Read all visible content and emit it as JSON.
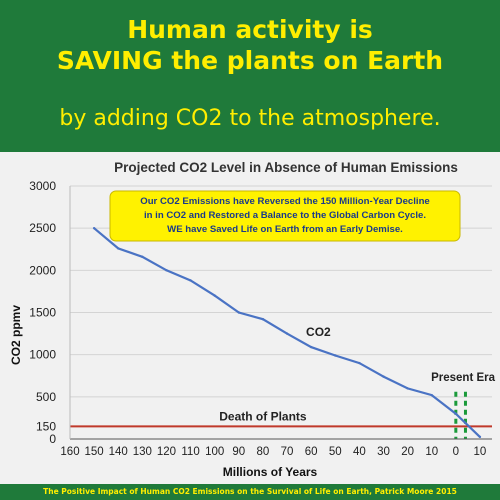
{
  "header": {
    "headline_line1": "Human activity is",
    "headline_line2": "SAVING the plants on Earth",
    "subline": "by adding CO2 to the atmosphere."
  },
  "footer": {
    "credit": "The Positive Impact of Human CO2 Emissions on the Survival of Life on Earth, Patrick Moore 2015"
  },
  "colors": {
    "background_green": "#1f7a3a",
    "headline_yellow": "#ffee00",
    "co2_line": "#4a73c4",
    "death_line": "#c0392b",
    "present_marker": "#1a9a3a",
    "callout_fill": "#fff200"
  },
  "chart_data": {
    "type": "line",
    "title": "Projected CO2 Level in Absence of Human Emissions",
    "xlabel": "Millions of Years",
    "ylabel": "CO2 ppmv",
    "x_reversed": true,
    "xlim": [
      160,
      -15
    ],
    "ylim": [
      0,
      3000
    ],
    "x_ticks": [
      160,
      150,
      140,
      130,
      120,
      110,
      100,
      90,
      80,
      70,
      60,
      50,
      40,
      30,
      20,
      10,
      0,
      -10
    ],
    "x_tick_labels": [
      "160",
      "150",
      "140",
      "130",
      "120",
      "110",
      "100",
      "90",
      "80",
      "70",
      "60",
      "50",
      "40",
      "30",
      "20",
      "10",
      "0",
      "10"
    ],
    "y_ticks": [
      0,
      150,
      500,
      1000,
      1500,
      2000,
      2500,
      3000
    ],
    "y_tick_labels": [
      "0",
      "150",
      "500",
      "1000",
      "1500",
      "2000",
      "2500",
      "3000"
    ],
    "grid": "horizontal",
    "series": [
      {
        "name": "CO2",
        "x": [
          150,
          140,
          130,
          120,
          110,
          100,
          90,
          80,
          70,
          60,
          50,
          40,
          30,
          20,
          10,
          0,
          -10
        ],
        "y": [
          2500,
          2260,
          2160,
          2000,
          1880,
          1700,
          1500,
          1420,
          1250,
          1090,
          990,
          900,
          740,
          600,
          520,
          300,
          25
        ]
      }
    ],
    "threshold": {
      "label": "Death of Plants",
      "y": 150
    },
    "present_marker": {
      "label": "Present Era",
      "x": [
        0,
        -4
      ]
    },
    "callout": {
      "line1": "Our CO2 Emissions have Reversed the 150 Million-Year Decline",
      "line2": "in in CO2 and Restored a Balance to the Global Carbon Cycle.",
      "line3": "WE have Saved Life on Earth from an Early Demise."
    }
  }
}
